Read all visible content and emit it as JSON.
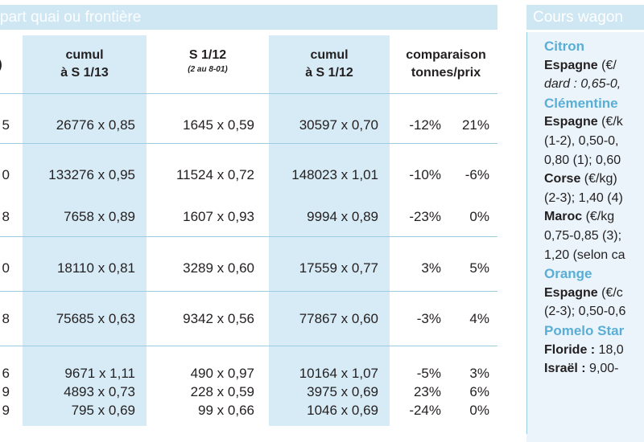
{
  "left_table": {
    "title": "part quai ou frontière",
    "headers": [
      {
        "line1": ")",
        "line2": ""
      },
      {
        "line1": "cumul",
        "line2": "à S 1/13",
        "sub": ""
      },
      {
        "line1": "S 1/12",
        "line2": "",
        "sub": "(2 au 8-01)"
      },
      {
        "line1": "cumul",
        "line2": "à S 1/12",
        "sub": ""
      },
      {
        "line1": "comparaison",
        "line2": "tonnes/prix",
        "sub": ""
      }
    ],
    "rows": [
      {
        "c0": "5",
        "c1": "26776 x 0,85",
        "c2": "1645 x 0,59",
        "c3": "30597 x 0,70",
        "c4": "-12%",
        "c5": "21%"
      },
      {
        "c0": "0",
        "c1": "133276 x 0,95",
        "c2": "11524 x 0,72",
        "c3": "148023 x 1,01",
        "c4": "-10%",
        "c5": "-6%"
      },
      {
        "c0": "8",
        "c1": "7658 x 0,89",
        "c2": "1607 x 0,93",
        "c3": "9994 x 0,89",
        "c4": "-23%",
        "c5": "0%"
      },
      {
        "c0": "0",
        "c1": "18110 x 0,81",
        "c2": "3289 x 0,60",
        "c3": "17559 x 0,77",
        "c4": "3%",
        "c5": "5%"
      },
      {
        "c0": "8",
        "c1": "75685 x 0,63",
        "c2": "9342 x 0,56",
        "c3": "77867 x 0,60",
        "c4": "-3%",
        "c5": "4%"
      },
      {
        "c0": "6",
        "c1": "9671 x 1,11",
        "c2": "490 x 0,97",
        "c3": "10164 x 1,07",
        "c4": "-5%",
        "c5": "3%"
      },
      {
        "c0": "9",
        "c1": "4893 x 0,73",
        "c2": "228 x 0,59",
        "c3": "3975 x 0,69",
        "c4": "23%",
        "c5": "6%"
      },
      {
        "c0": "9",
        "c1": "795 x 0,69",
        "c2": "99 x 0,66",
        "c3": "1046 x 0,69",
        "c4": "-24%",
        "c5": "0%"
      }
    ]
  },
  "right_panel": {
    "title": "Cours wagon",
    "lines": [
      {
        "kind": "fruit",
        "text": "Citron"
      },
      {
        "kind": "bold",
        "bold": "Espagne",
        "rest": " (€/"
      },
      {
        "kind": "italic",
        "text": "dard : 0,65-0,"
      },
      {
        "kind": "fruit",
        "text": "Clémentine"
      },
      {
        "kind": "bold",
        "bold": "Espagne",
        "rest": " (€/k"
      },
      {
        "kind": "plain",
        "text": "(1-2), 0,50-0,"
      },
      {
        "kind": "plain",
        "text": "0,80 (1); 0,60"
      },
      {
        "kind": "bold",
        "bold": "Corse",
        "rest": " (€/kg)"
      },
      {
        "kind": "plain",
        "text": "(2-3); 1,40 (4)"
      },
      {
        "kind": "bold",
        "bold": "Maroc",
        "rest": " (€/kg"
      },
      {
        "kind": "plain",
        "text": "0,75-0,85 (3);"
      },
      {
        "kind": "plain",
        "text": "1,20 (selon ca"
      },
      {
        "kind": "fruit",
        "text": "Orange"
      },
      {
        "kind": "bold",
        "bold": "Espagne",
        "rest": " (€/c"
      },
      {
        "kind": "plain",
        "text": "(2-3); 0,50-0,6"
      },
      {
        "kind": "fruit",
        "text": "Pomelo Star"
      },
      {
        "kind": "bold",
        "bold": "Floride :",
        "rest": " 18,0"
      },
      {
        "kind": "bold",
        "bold": "Israël :",
        "rest": " 9,00-"
      }
    ]
  }
}
